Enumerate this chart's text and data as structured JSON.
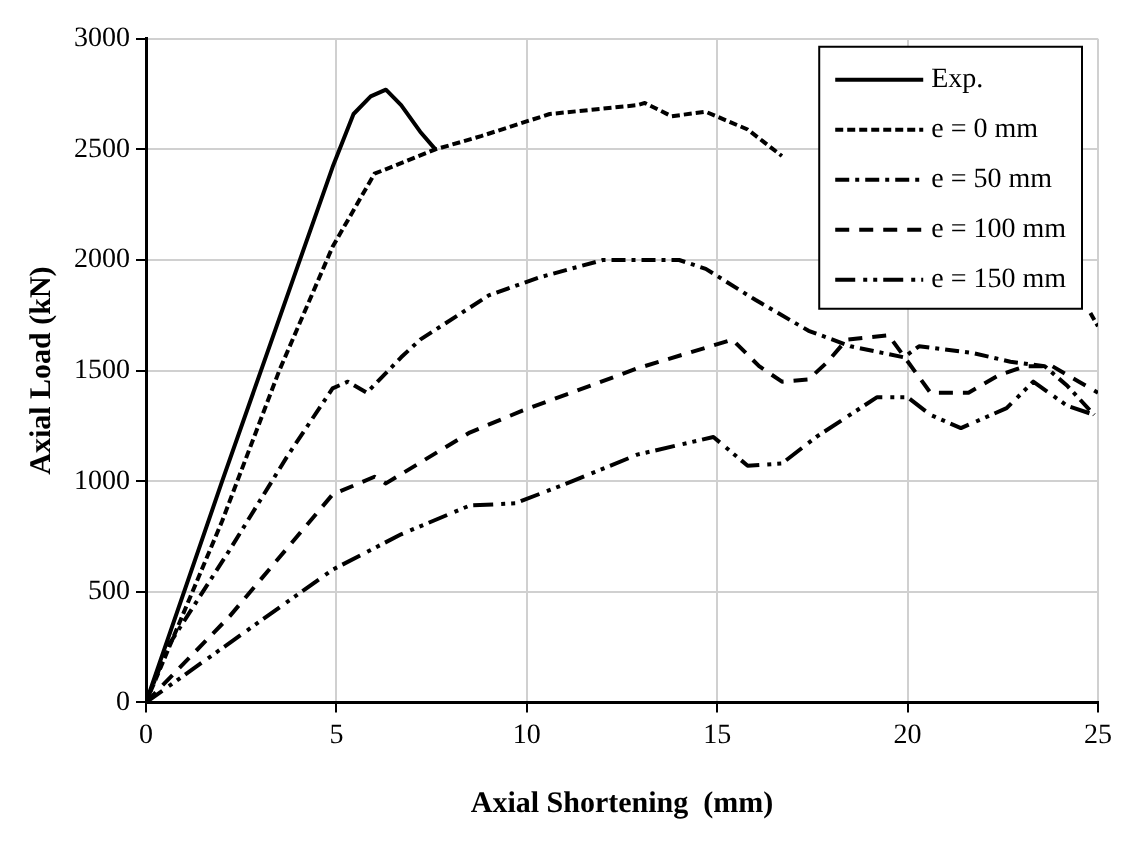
{
  "chart_data": {
    "type": "line",
    "xlabel": "Axial Shortening  (mm)",
    "ylabel": "Axial Load (kN)",
    "xlim": [
      0,
      25
    ],
    "xticks": [
      0,
      5,
      10,
      15,
      20,
      25
    ],
    "ylim": [
      0,
      3000
    ],
    "yticks": [
      0,
      500,
      1000,
      1500,
      2000,
      2500,
      3000
    ],
    "grid": true,
    "legend": "top right",
    "marker": "none",
    "series": [
      {
        "name": "Exp.",
        "color": "#000000",
        "line_style": "solid",
        "x": [
          0,
          2,
          4,
          4.9,
          5.45,
          5.9,
          6.3,
          6.7,
          7.2,
          7.6
        ],
        "values": [
          0,
          1000,
          1980,
          2420,
          2660,
          2740,
          2770,
          2700,
          2580,
          2500
        ]
      },
      {
        "name": "e = 0 mm",
        "color": "#000000",
        "line_style": "dotted",
        "x": [
          0,
          2,
          3.5,
          4.9,
          6,
          7.6,
          8.8,
          10.6,
          12.9,
          13.1,
          13.8,
          14.7,
          15.8,
          16.7,
          17,
          24.8,
          25
        ],
        "values": [
          0,
          820,
          1500,
          2060,
          2390,
          2500,
          2560,
          2660,
          2700,
          2710,
          2650,
          2670,
          2590,
          2470,
          null,
          1760,
          1700
        ]
      },
      {
        "name": "e = 50 mm",
        "color": "#000000",
        "line_style": "dashed",
        "x": [
          0,
          0.6,
          2.2,
          3.7,
          4.9,
          5.3,
          5.8,
          6.7,
          7.2,
          9,
          10.3,
          12,
          13.1,
          14,
          14.7,
          16,
          17.4,
          18.5,
          19.9,
          20.3,
          21.7,
          22.7,
          23.6,
          24.2,
          24.9
        ],
        "values": [
          0,
          260,
          690,
          1110,
          1420,
          1450,
          1400,
          1560,
          1640,
          1840,
          1920,
          2000,
          2000,
          2000,
          1960,
          1820,
          1680,
          1610,
          1560,
          1610,
          1580,
          1540,
          1520,
          1430,
          1300
        ]
      },
      {
        "name": "e = 100 mm",
        "color": "#000000",
        "line_style": "dashed",
        "x": [
          0,
          2.2,
          4.9,
          6,
          6.3,
          8.5,
          9.9,
          12.9,
          15.4,
          16.1,
          16.7,
          17.4,
          17.9,
          18.4,
          19.5,
          20.6,
          21.6,
          22.4,
          23.1,
          23.8,
          24.5,
          25
        ],
        "values": [
          0,
          390,
          940,
          1020,
          990,
          1220,
          1320,
          1510,
          1640,
          1520,
          1450,
          1460,
          1540,
          1640,
          1660,
          1400,
          1400,
          1480,
          1520,
          1520,
          1450,
          1400
        ]
      },
      {
        "name": "e = 150 mm",
        "color": "#000000",
        "line_style": "dashed",
        "x": [
          0,
          4.9,
          6.7,
          8.5,
          9.7,
          11.2,
          12.9,
          14.9,
          15.8,
          16.7,
          17.6,
          19.2,
          20,
          20.6,
          21.4,
          22.6,
          23.3,
          24.2,
          24.9
        ],
        "values": [
          0,
          600,
          760,
          890,
          900,
          1000,
          1120,
          1200,
          1070,
          1080,
          1200,
          1380,
          1380,
          1300,
          1240,
          1330,
          1450,
          1340,
          1300
        ]
      }
    ]
  }
}
